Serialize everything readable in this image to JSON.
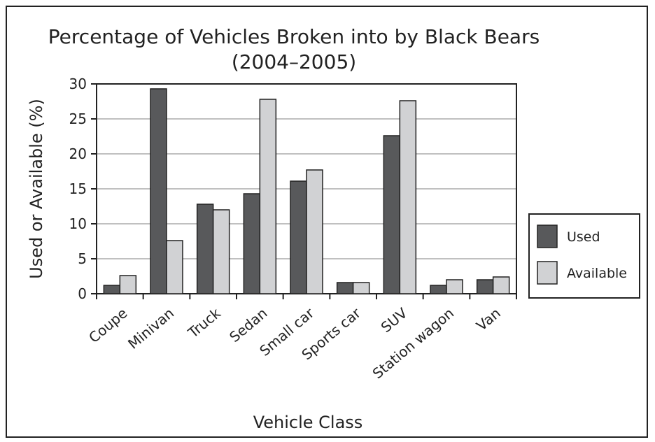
{
  "chart_data": {
    "type": "bar",
    "title": "Percentage of Vehicles Broken into by Black Bears",
    "subtitle": "(2004–2005)",
    "xlabel": "Vehicle Class",
    "ylabel": "Used or Available (%)",
    "ylim": [
      0,
      30
    ],
    "yticks": [
      0,
      5,
      10,
      15,
      20,
      25,
      30
    ],
    "categories": [
      "Coupe",
      "Minivan",
      "Truck",
      "Sedan",
      "Small car",
      "Sports car",
      "SUV",
      "Station wagon",
      "Van"
    ],
    "series": [
      {
        "name": "Used",
        "color": "#58595b",
        "values": [
          1.2,
          29.3,
          12.8,
          14.3,
          16.1,
          1.6,
          22.6,
          1.2,
          2.0
        ]
      },
      {
        "name": "Available",
        "color": "#d1d2d4",
        "values": [
          2.6,
          7.6,
          12.0,
          27.8,
          17.7,
          1.6,
          27.6,
          2.0,
          2.4
        ]
      }
    ],
    "grid": true,
    "legend": "right"
  }
}
